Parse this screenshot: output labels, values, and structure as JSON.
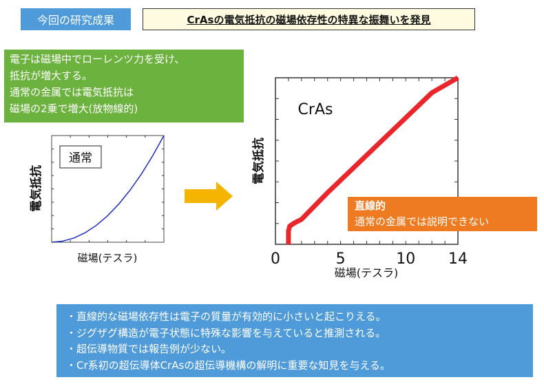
{
  "header": {
    "tag": "今回の研究成果",
    "title": "CrAsの電気抵抗の磁場依存性の特異な振舞いを発見"
  },
  "intro_box": {
    "lines": [
      "電子は磁場中でローレンツ力を受け、",
      "抵抗が増大する。",
      "通常の金属では電気抵抗は",
      "磁場の2乗で増大(放物線的)"
    ]
  },
  "finding_box": {
    "title": "直線的",
    "text": "通常の金属では説明できない"
  },
  "summary_box": {
    "lines": [
      "・直線的な磁場依存性は電子の質量が有効的に小さいと起こりえる。",
      "・ジグザグ構造が電子状態に特殊な影響を与えていると推測される。",
      "・超伝導物質では報告例が少ない。",
      "・Cr系初の超伝導体CrAsの超伝導機構の解明に重要な知見を与える。"
    ]
  },
  "colors": {
    "header_tag_bg": "#4f9bd9",
    "intro_bg": "#6cb23e",
    "finding_bg": "#ee7b22",
    "summary_bg": "#4f9bd9",
    "arrow": "#f5b400",
    "normal_curve": "#1f2dbf",
    "cras_curve": "#e8262c"
  },
  "icons": {
    "arrow": "right-arrow-icon"
  },
  "chart_data": [
    {
      "type": "line",
      "label": "通常",
      "xlabel": "磁場(テスラ)",
      "ylabel": "電気抵抗",
      "x_ticks": [],
      "y_ticks": [],
      "xlim": [
        0,
        1
      ],
      "ylim": [
        0,
        1
      ],
      "series": [
        {
          "x": [
            0,
            0.1,
            0.2,
            0.3,
            0.4,
            0.5,
            0.6,
            0.7,
            0.8,
            0.9,
            1.0
          ],
          "y": [
            0,
            0.01,
            0.04,
            0.09,
            0.16,
            0.25,
            0.36,
            0.49,
            0.64,
            0.81,
            1.0
          ]
        }
      ]
    },
    {
      "type": "line",
      "label": "CrAs",
      "xlabel": "磁場(テスラ)",
      "ylabel": "電気抵抗",
      "x_ticks": [
        "0",
        "5",
        "10",
        "14"
      ],
      "y_ticks": [],
      "xlim": [
        0,
        14
      ],
      "ylim": [
        0,
        1
      ],
      "series": [
        {
          "x": [
            1.0,
            1.0,
            1.1,
            1.5,
            2.0,
            4.0,
            6.0,
            8.0,
            10.0,
            12.0,
            14.0
          ],
          "y": [
            0.0,
            0.08,
            0.11,
            0.13,
            0.15,
            0.31,
            0.46,
            0.61,
            0.76,
            0.91,
            1.0
          ]
        }
      ]
    }
  ]
}
